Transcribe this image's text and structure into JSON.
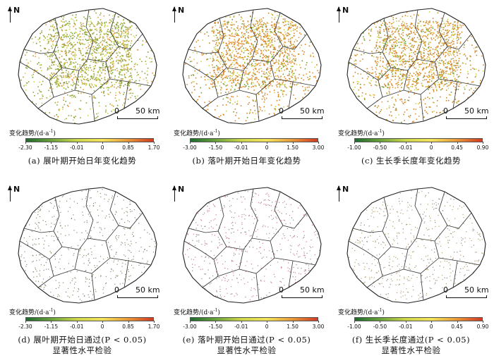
{
  "north_label": "N",
  "scale": {
    "zero": "0",
    "distance": "50 km"
  },
  "legend_title_main": "变化趋势/(d·a",
  "legend_title_sup": "-1",
  "legend_title_end": ")",
  "panels": [
    {
      "id": "a",
      "caption_line1": "(a) 展叶期开始日年变化趋势",
      "caption_line2": "",
      "ticks": [
        "-2.30",
        "-1.15",
        "-0.01",
        "0",
        "0.85",
        "1.70"
      ],
      "dominant_color": "#9aa53c",
      "gradient": [
        "#1e6b2e",
        "#6aa23a",
        "#cdd64a",
        "#f3e35a",
        "#e89a3a",
        "#d23a22"
      ]
    },
    {
      "id": "b",
      "caption_line1": "(b) 落叶期开始日年变化趋势",
      "caption_line2": "",
      "ticks": [
        "-3.00",
        "-1.50",
        "-0.01",
        "0",
        "1.50",
        "3.00"
      ],
      "dominant_color": "#d8862a",
      "gradient": [
        "#1e6b2e",
        "#6aa23a",
        "#cdd64a",
        "#f3e35a",
        "#e89a3a",
        "#d23a22"
      ]
    },
    {
      "id": "c",
      "caption_line1": "(c) 生长季长度年变化趋势",
      "caption_line2": "",
      "ticks": [
        "-1.00",
        "-0.50",
        "-0.01",
        "0",
        "0.45",
        "0.90"
      ],
      "dominant_color": "#cf8a2e",
      "gradient": [
        "#1e6b2e",
        "#6aa23a",
        "#cdd64a",
        "#f3e35a",
        "#e89a3a",
        "#d23a22"
      ]
    },
    {
      "id": "d",
      "caption_line1": "(d) 展叶期开始日通过(P < 0.05)",
      "caption_line2": "显著性水平检验",
      "ticks": [
        "-2.30",
        "-1.15",
        "-0.01",
        "0",
        "0.85",
        "1.70"
      ],
      "dominant_color": "#8a8a6a",
      "gradient": [
        "#1e6b2e",
        "#6aa23a",
        "#cdd64a",
        "#f3e35a",
        "#e89a3a",
        "#d23a22"
      ]
    },
    {
      "id": "e",
      "caption_line1": "(e) 落叶期开始日通过(P < 0.05)",
      "caption_line2": "显著性水平检验",
      "ticks": [
        "-3.00",
        "-1.50",
        "-0.01",
        "0",
        "1.50",
        "3.00"
      ],
      "dominant_color": "#c9828a",
      "gradient": [
        "#1e6b2e",
        "#6aa23a",
        "#cdd64a",
        "#f3e35a",
        "#e89a3a",
        "#d23a22"
      ]
    },
    {
      "id": "f",
      "caption_line1": "(f) 生长季长度通过(P < 0.05)",
      "caption_line2": "显著性水平检验",
      "ticks": [
        "-1.00",
        "-0.50",
        "-0.01",
        "0",
        "0.45",
        "0.90"
      ],
      "dominant_color": "#b0a070",
      "gradient": [
        "#1e6b2e",
        "#6aa23a",
        "#cdd64a",
        "#f3e35a",
        "#e89a3a",
        "#d23a22"
      ]
    }
  ]
}
